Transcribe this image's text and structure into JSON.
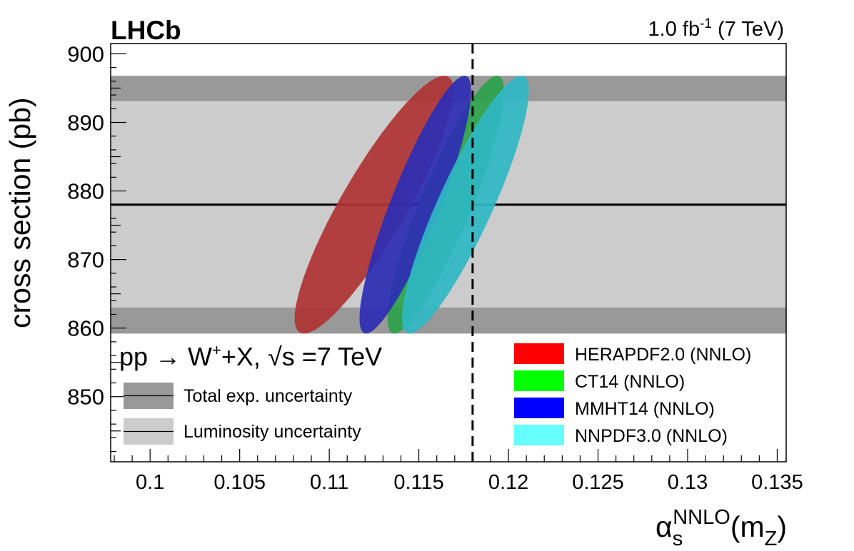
{
  "chart_data": {
    "type": "scatter",
    "experiment_label": "LHCb",
    "lumi_label": {
      "value": "1.0 fb",
      "sup": "-1",
      "suffix": " (7 TeV)"
    },
    "xlabel": {
      "alpha": "α",
      "sub": "s",
      "sup": "NNLO",
      "open": "(m",
      "zsub": "Z",
      "close": ")"
    },
    "ylabel": "cross section (pb)",
    "xlim": [
      0.0978,
      0.1355
    ],
    "ylim": [
      840.5,
      901.5
    ],
    "xticks": [
      {
        "value": 0.1,
        "label": "0.1"
      },
      {
        "value": 0.105,
        "label": "0.105"
      },
      {
        "value": 0.11,
        "label": "0.11"
      },
      {
        "value": 0.115,
        "label": "0.115"
      },
      {
        "value": 0.12,
        "label": "0.12"
      },
      {
        "value": 0.125,
        "label": "0.125"
      },
      {
        "value": 0.13,
        "label": "0.13"
      },
      {
        "value": 0.135,
        "label": "0.135"
      }
    ],
    "yticks": [
      {
        "value": 850,
        "label": "850"
      },
      {
        "value": 860,
        "label": "860"
      },
      {
        "value": 870,
        "label": "870"
      },
      {
        "value": 880,
        "label": "880"
      },
      {
        "value": 890,
        "label": "890"
      },
      {
        "value": 900,
        "label": "900"
      }
    ],
    "measurement": {
      "central": 878.0,
      "total_exp_band": [
        859.2,
        896.8
      ],
      "luminosity_band": [
        863.0,
        893.1
      ]
    },
    "alpha_s_reference": 0.118,
    "process_label": {
      "pre": "pp → W",
      "sup": "+",
      "post": "+X,  ",
      "sqrt": "√",
      "s_eq": "s =7 TeV"
    },
    "band_legend": [
      {
        "label": "Total exp. uncertainty",
        "color": "#999999"
      },
      {
        "label": "Luminosity uncertainty",
        "color": "#cccccc"
      }
    ],
    "series": [
      {
        "name": "HERAPDF2.0 (NNLO)",
        "color": "#ff0000",
        "shade": "#b03333",
        "center_alpha_s": 0.1125,
        "center_xsec": 878.0,
        "alpha_s_range": [
          0.1077,
          0.1171
        ],
        "xsec_range": [
          859.2,
          896.8
        ]
      },
      {
        "name": "CT14 (NNLO)",
        "color": "#00ff00",
        "shade": "#2aa24a",
        "center_alpha_s": 0.1165,
        "center_xsec": 878.0,
        "alpha_s_range": [
          0.113,
          0.1199
        ],
        "xsec_range": [
          859.2,
          896.8
        ]
      },
      {
        "name": "MMHT14 (NNLO)",
        "color": "#0000ff",
        "shade": "#2d2db4",
        "center_alpha_s": 0.1148,
        "center_xsec": 878.0,
        "alpha_s_range": [
          0.1115,
          0.1181
        ],
        "xsec_range": [
          859.2,
          896.8
        ]
      },
      {
        "name": "NNPDF3.0 (NNLO)",
        "color": "#66ffff",
        "shade": "#2fb7c4",
        "center_alpha_s": 0.1176,
        "center_xsec": 878.0,
        "alpha_s_range": [
          0.1141,
          0.1216
        ],
        "xsec_range": [
          859.2,
          896.8
        ]
      }
    ]
  }
}
